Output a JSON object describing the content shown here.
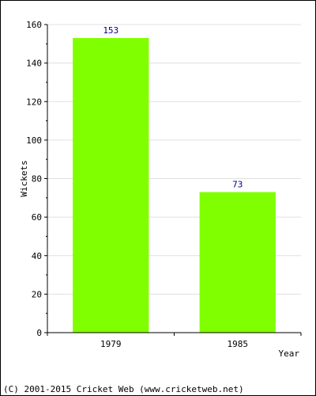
{
  "chart_data": {
    "type": "bar",
    "categories": [
      "1979",
      "1985"
    ],
    "values": [
      153,
      73
    ],
    "data_labels": [
      "153",
      "73"
    ],
    "xlabel": "Year",
    "ylabel": "Wickets",
    "ylim": [
      0,
      160
    ],
    "yticks": [
      0,
      20,
      40,
      60,
      80,
      100,
      120,
      140,
      160
    ],
    "ytick_labels": [
      "0",
      "20",
      "40",
      "60",
      "80",
      "100",
      "120",
      "140",
      "160"
    ],
    "grid": true,
    "bar_color": "#80ff00",
    "label_color": "#000080",
    "grid_color": "#e0e0e0"
  },
  "footer": {
    "copyright": "(C) 2001-2015 Cricket Web (www.cricketweb.net)"
  }
}
